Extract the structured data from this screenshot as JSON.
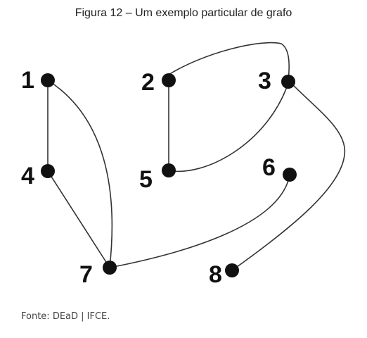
{
  "caption": "Figura 12 – Um exemplo particular de grafo",
  "source": "Fonte: DEaD | IFCE.",
  "graph": {
    "nodes": [
      {
        "id": "1",
        "label": "1"
      },
      {
        "id": "2",
        "label": "2"
      },
      {
        "id": "3",
        "label": "3"
      },
      {
        "id": "4",
        "label": "4"
      },
      {
        "id": "5",
        "label": "5"
      },
      {
        "id": "6",
        "label": "6"
      },
      {
        "id": "7",
        "label": "7"
      },
      {
        "id": "8",
        "label": "8"
      }
    ],
    "edges": [
      {
        "from": "1",
        "to": "4"
      },
      {
        "from": "1",
        "to": "7"
      },
      {
        "from": "4",
        "to": "7"
      },
      {
        "from": "7",
        "to": "6"
      },
      {
        "from": "2",
        "to": "5"
      },
      {
        "from": "2",
        "to": "3"
      },
      {
        "from": "5",
        "to": "3"
      },
      {
        "from": "3",
        "to": "8"
      }
    ]
  }
}
